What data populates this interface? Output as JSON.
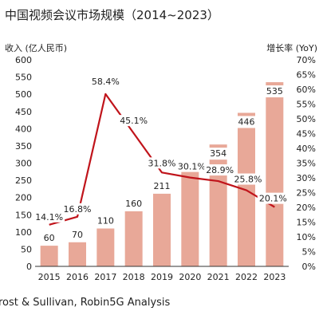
{
  "chart_data": {
    "type": "bar",
    "title": "中国视频会议市场规模（2014~2023）",
    "ylabel_left": "收入 (亿人民币)",
    "ylabel_right": "增长率 (YoY)",
    "categories": [
      "2015",
      "2016",
      "2017",
      "2018",
      "2019",
      "2020",
      "2021",
      "2022",
      "2023"
    ],
    "bar_series": {
      "name": "收入 (亿人民币)",
      "values": [
        60,
        70,
        110,
        160,
        211,
        275,
        354,
        446,
        535
      ]
    },
    "line_series": {
      "name": "增长率 (YoY)",
      "values": [
        14.1,
        16.8,
        58.4,
        45.1,
        31.8,
        30.1,
        28.9,
        25.8,
        20.1
      ],
      "labels": [
        "14.1%",
        "16.8%",
        "58.4%",
        "45.1%",
        "31.8%",
        "30.1%",
        "28.9%",
        "25.8%",
        "20.1%"
      ]
    },
    "y_left": {
      "min": 0,
      "max": 600,
      "ticks": [
        "0",
        "50",
        "100",
        "150",
        "200",
        "250",
        "300",
        "350",
        "400",
        "450",
        "500",
        "550",
        "600"
      ]
    },
    "y_right": {
      "min": 0,
      "max": 70,
      "ticks": [
        "0%",
        "5%",
        "10%",
        "15%",
        "20%",
        "25%",
        "30%",
        "35%",
        "40%",
        "45%",
        "50%",
        "55%",
        "60%",
        "65%",
        "70%"
      ]
    },
    "grid": false,
    "colors": {
      "bar": "#e8a898",
      "line": "#c0141b",
      "bar_label_bg": "#ffffff"
    }
  },
  "source": "rost & Sullivan, Robin5G Analysis"
}
